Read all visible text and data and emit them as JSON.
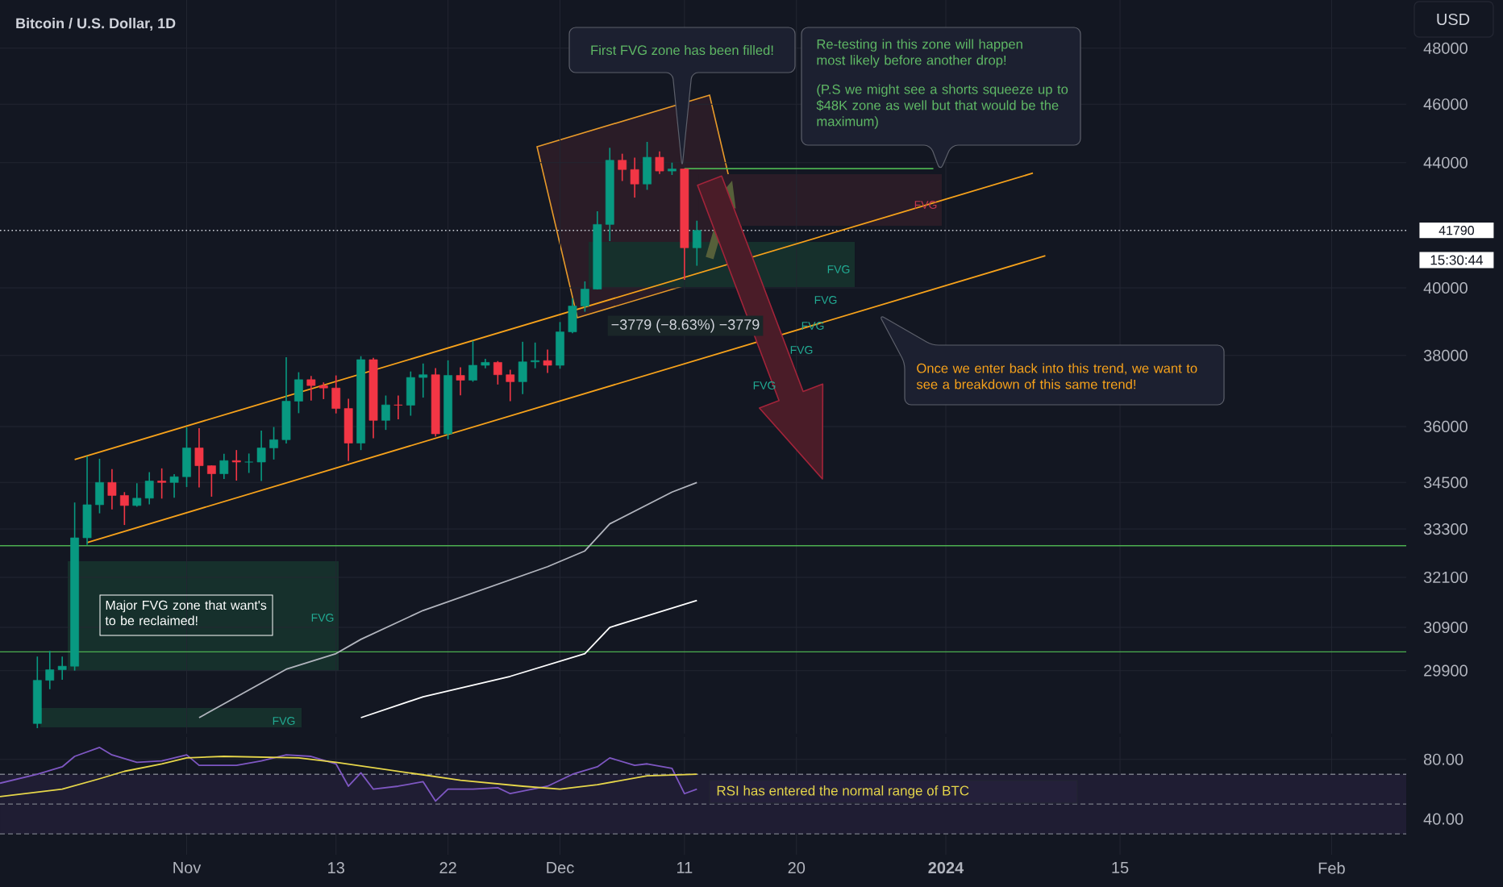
{
  "chart_data": [
    {
      "type": "candlestick",
      "title": "Bitcoin / U.S. Dollar, 1D",
      "x": [
        "2023-10-20",
        "2023-10-21",
        "2023-10-22",
        "2023-10-23",
        "2023-10-24",
        "2023-10-25",
        "2023-10-26",
        "2023-10-27",
        "2023-10-28",
        "2023-10-29",
        "2023-10-30",
        "2023-10-31",
        "2023-11-01",
        "2023-11-02",
        "2023-11-03",
        "2023-11-04",
        "2023-11-05",
        "2023-11-06",
        "2023-11-07",
        "2023-11-08",
        "2023-11-09",
        "2023-11-10",
        "2023-11-11",
        "2023-11-12",
        "2023-11-13",
        "2023-11-14",
        "2023-11-15",
        "2023-11-16",
        "2023-11-17",
        "2023-11-18",
        "2023-11-19",
        "2023-11-20",
        "2023-11-21",
        "2023-11-22",
        "2023-11-23",
        "2023-11-24",
        "2023-11-25",
        "2023-11-26",
        "2023-11-27",
        "2023-11-28",
        "2023-11-29",
        "2023-11-30",
        "2023-12-01",
        "2023-12-02",
        "2023-12-03",
        "2023-12-04",
        "2023-12-05",
        "2023-12-06",
        "2023-12-07",
        "2023-12-08",
        "2023-12-09",
        "2023-12-10",
        "2023-12-11",
        "2023-12-12"
      ],
      "ohlc": [
        [
          28720,
          30220,
          28620,
          29680
        ],
        [
          29680,
          30350,
          29480,
          29920
        ],
        [
          29920,
          30220,
          29690,
          30000
        ],
        [
          30000,
          33980,
          29900,
          33080
        ],
        [
          33080,
          35200,
          32900,
          33920
        ],
        [
          33920,
          35130,
          33700,
          34500
        ],
        [
          34500,
          34850,
          33800,
          34160
        ],
        [
          34160,
          34250,
          33400,
          33900
        ],
        [
          33900,
          34480,
          33870,
          34090
        ],
        [
          34090,
          34770,
          33930,
          34540
        ],
        [
          34540,
          34870,
          34080,
          34500
        ],
        [
          34500,
          34720,
          34100,
          34650
        ],
        [
          34650,
          35980,
          34380,
          35420
        ],
        [
          35420,
          35960,
          34370,
          34940
        ],
        [
          34940,
          34950,
          34130,
          34730
        ],
        [
          34730,
          35260,
          34590,
          35080
        ],
        [
          35080,
          35360,
          34550,
          35040
        ],
        [
          35040,
          35270,
          34750,
          35040
        ],
        [
          35040,
          35890,
          34540,
          35420
        ],
        [
          35420,
          35990,
          35110,
          35640
        ],
        [
          35640,
          37950,
          35540,
          36700
        ],
        [
          36700,
          37520,
          36370,
          37310
        ],
        [
          37310,
          37410,
          36720,
          37140
        ],
        [
          37140,
          37230,
          36760,
          37070
        ],
        [
          37070,
          37430,
          36360,
          36500
        ],
        [
          36500,
          36770,
          35070,
          35550
        ],
        [
          35550,
          37980,
          35360,
          37880
        ],
        [
          37880,
          37930,
          35680,
          36170
        ],
        [
          36170,
          36860,
          35910,
          36600
        ],
        [
          36600,
          36860,
          36200,
          36590
        ],
        [
          36590,
          37540,
          36300,
          37370
        ],
        [
          37370,
          37770,
          36800,
          37450
        ],
        [
          37450,
          37640,
          35730,
          35800
        ],
        [
          35800,
          37860,
          35650,
          37430
        ],
        [
          37430,
          37660,
          36870,
          37290
        ],
        [
          37290,
          38430,
          37250,
          37720
        ],
        [
          37720,
          37900,
          37630,
          37800
        ],
        [
          37800,
          37840,
          37170,
          37450
        ],
        [
          37450,
          37590,
          36700,
          37250
        ],
        [
          37250,
          38400,
          36900,
          37820
        ],
        [
          37820,
          38380,
          37630,
          37850
        ],
        [
          37850,
          38170,
          37500,
          37720
        ],
        [
          37720,
          38980,
          37620,
          38690
        ],
        [
          38690,
          39700,
          38650,
          39460
        ],
        [
          39460,
          40200,
          39290,
          39970
        ],
        [
          39970,
          42400,
          39960,
          41980
        ],
        [
          41980,
          44500,
          41450,
          44080
        ],
        [
          44080,
          44300,
          43390,
          43770
        ],
        [
          43770,
          44170,
          42850,
          43290
        ],
        [
          43290,
          44700,
          43100,
          44180
        ],
        [
          44180,
          44380,
          43620,
          43720
        ],
        [
          43720,
          44000,
          43590,
          43790
        ],
        [
          43790,
          43800,
          40250,
          41240
        ],
        [
          41240,
          42100,
          40680,
          41790
        ]
      ],
      "colors": [
        "#089981",
        "#089981",
        "#089981",
        "#089981",
        "#089981",
        "#089981",
        "#f23645",
        "#f23645",
        "#089981",
        "#089981",
        "#f23645",
        "#089981",
        "#089981",
        "#f23645",
        "#f23645",
        "#089981",
        "#f23645",
        "#089981",
        "#089981",
        "#089981",
        "#089981",
        "#089981",
        "#f23645",
        "#f23645",
        "#f23645",
        "#f23645",
        "#089981",
        "#f23645",
        "#089981",
        "#f23645",
        "#089981",
        "#089981",
        "#f23645",
        "#089981",
        "#f23645",
        "#089981",
        "#089981",
        "#f23645",
        "#f23645",
        "#089981",
        "#089981",
        "#f23645",
        "#089981",
        "#089981",
        "#089981",
        "#089981",
        "#089981",
        "#f23645",
        "#f23645",
        "#089981",
        "#f23645",
        "#089981",
        "#f23645",
        "#089981"
      ],
      "series": [
        {
          "type": "line",
          "color": "#b2b5be",
          "x": [
            "2023-11-02",
            "2023-11-09",
            "2023-11-13",
            "2023-11-15",
            "2023-11-20",
            "2023-11-30",
            "2023-12-03",
            "2023-12-05",
            "2023-12-10",
            "2023-12-12"
          ],
          "values": [
            28850,
            29930,
            30290,
            30620,
            31300,
            32360,
            32750,
            33430,
            34250,
            34500
          ]
        },
        {
          "type": "line",
          "color": "#ffffff",
          "x": [
            "2023-11-15",
            "2023-11-20",
            "2023-11-27",
            "2023-12-03",
            "2023-12-05",
            "2023-12-12"
          ],
          "values": [
            28850,
            29310,
            29770,
            30290,
            30900,
            31540
          ]
        },
        {
          "type": "line",
          "color": "#f7a21b",
          "x": [
            "2023-10-23",
            "2024-01-08"
          ],
          "values": [
            35110,
            43650
          ]
        },
        {
          "type": "line",
          "color": "#f7a21b",
          "x": [
            "2023-10-24",
            "2024-01-09"
          ],
          "values": [
            32960,
            40990
          ]
        },
        {
          "type": "line",
          "color": "#4caf50",
          "x": [
            "2023-12-11",
            "2023-12-31"
          ],
          "values": [
            43800,
            43800
          ]
        }
      ],
      "ref_lines": [
        {
          "axis": "y",
          "value": 41790,
          "label": "41790",
          "color": "#d1d4dc",
          "line_style": "dotted"
        },
        {
          "axis": "y",
          "value": 32880,
          "color": "#4caf50",
          "line_style": "solid"
        },
        {
          "axis": "y",
          "value": 30330,
          "color": "#4caf50",
          "line_style": "solid"
        }
      ],
      "annotations": [
        "First FVG zone has been filled!",
        "Re-testing in this zone will happen most likely before another drop!",
        "(P.S we might see a shorts squeeze up to $48K zone as well but that would be the maximum)",
        "Once we enter back into this trend, we want to see a breakdown of this same trend!",
        "Major FVG zone that want's to be reclaimed!",
        "−3779 (−8.63%) −3779",
        "USD",
        "15:30:44",
        "FVG",
        "FVG",
        "FVG",
        "FVG",
        "FVG",
        "FVG",
        "FVG",
        "FVG"
      ],
      "xlim": [
        "2023-10-17",
        "2024-02-07"
      ],
      "xticks": [
        {
          "value": "2023-11-01",
          "label": null
        },
        {
          "value": "2023-11-13",
          "label": null
        },
        {
          "value": "2023-11-22",
          "label": null
        },
        {
          "value": "2023-12-01",
          "label": null
        },
        {
          "value": "2023-12-11",
          "label": null
        },
        {
          "value": "2023-12-20",
          "label": null
        },
        {
          "value": "2024-01-01",
          "label": null
        },
        {
          "value": "2024-01-15",
          "label": null
        },
        {
          "value": "2024-02-01",
          "label": null
        }
      ],
      "ylim": [
        28500,
        49800
      ],
      "yticks": [
        29900,
        30900,
        32100,
        33300,
        34500,
        36000,
        38000,
        40000,
        44000,
        46000,
        48000
      ],
      "log": true,
      "grid": true,
      "tick_labels": "y"
    },
    {
      "type": "line",
      "series": [
        {
          "color": "#7e57c2",
          "x": [
            "2023-10-17",
            "2023-10-20",
            "2023-10-22",
            "2023-10-23",
            "2023-10-24",
            "2023-10-25",
            "2023-10-26",
            "2023-10-28",
            "2023-10-30",
            "2023-11-01",
            "2023-11-02",
            "2023-11-05",
            "2023-11-07",
            "2023-11-09",
            "2023-11-11",
            "2023-11-13",
            "2023-11-14",
            "2023-11-15",
            "2023-11-16",
            "2023-11-18",
            "2023-11-20",
            "2023-11-21",
            "2023-11-22",
            "2023-11-24",
            "2023-11-26",
            "2023-11-27",
            "2023-11-30",
            "2023-12-02",
            "2023-12-04",
            "2023-12-05",
            "2023-12-07",
            "2023-12-08",
            "2023-12-10",
            "2023-12-11",
            "2023-12-12"
          ],
          "values": [
            64,
            70,
            75,
            82,
            85,
            88,
            83,
            78,
            79,
            83,
            76,
            76,
            79,
            83,
            82,
            77,
            62,
            71,
            60,
            62,
            65,
            52,
            60,
            60,
            61,
            57,
            62,
            70,
            75,
            81,
            76,
            77,
            74,
            57,
            60
          ]
        },
        {
          "color": "#e6d64a",
          "x": [
            "2023-10-17",
            "2023-10-22",
            "2023-10-25",
            "2023-10-27",
            "2023-10-30",
            "2023-11-01",
            "2023-11-04",
            "2023-11-10",
            "2023-11-13",
            "2023-11-18",
            "2023-11-23",
            "2023-11-28",
            "2023-12-01",
            "2023-12-04",
            "2023-12-08",
            "2023-12-12"
          ],
          "values": [
            55,
            60,
            67,
            72,
            77,
            81,
            82,
            81,
            78,
            72,
            66,
            62,
            60,
            63,
            69,
            70
          ]
        }
      ],
      "ref_lines": [
        {
          "axis": "y",
          "value": 70,
          "color": "#787b86",
          "line_style": "dashed"
        },
        {
          "axis": "y",
          "value": 50,
          "color": "#787b86",
          "line_style": "dashed"
        },
        {
          "axis": "y",
          "value": 30,
          "color": "#787b86",
          "line_style": "dashed"
        }
      ],
      "bands": [
        {
          "axis": "y",
          "from": 30,
          "to": 70,
          "color": "#1f1d33"
        }
      ],
      "annotations": [
        "RSI has entered the normal range of BTC"
      ],
      "xlim": [
        "2023-10-17",
        "2024-02-07"
      ],
      "xticks": [
        {
          "value": "2023-11-01",
          "label": "Nov"
        },
        {
          "value": "2023-11-13",
          "label": "13"
        },
        {
          "value": "2023-11-22",
          "label": "22"
        },
        {
          "value": "2023-12-01",
          "label": "Dec"
        },
        {
          "value": "2023-12-11",
          "label": "11"
        },
        {
          "value": "2023-12-20",
          "label": "20"
        },
        {
          "value": "2024-01-01",
          "label": "2024"
        },
        {
          "value": "2024-01-15",
          "label": "15"
        },
        {
          "value": "2024-02-01",
          "label": "Feb"
        }
      ],
      "ylim": [
        16,
        95
      ],
      "yticks": [
        {
          "value": 80,
          "label": "80.00"
        },
        {
          "value": 40,
          "label": "40.00"
        }
      ],
      "grid": true
    }
  ]
}
